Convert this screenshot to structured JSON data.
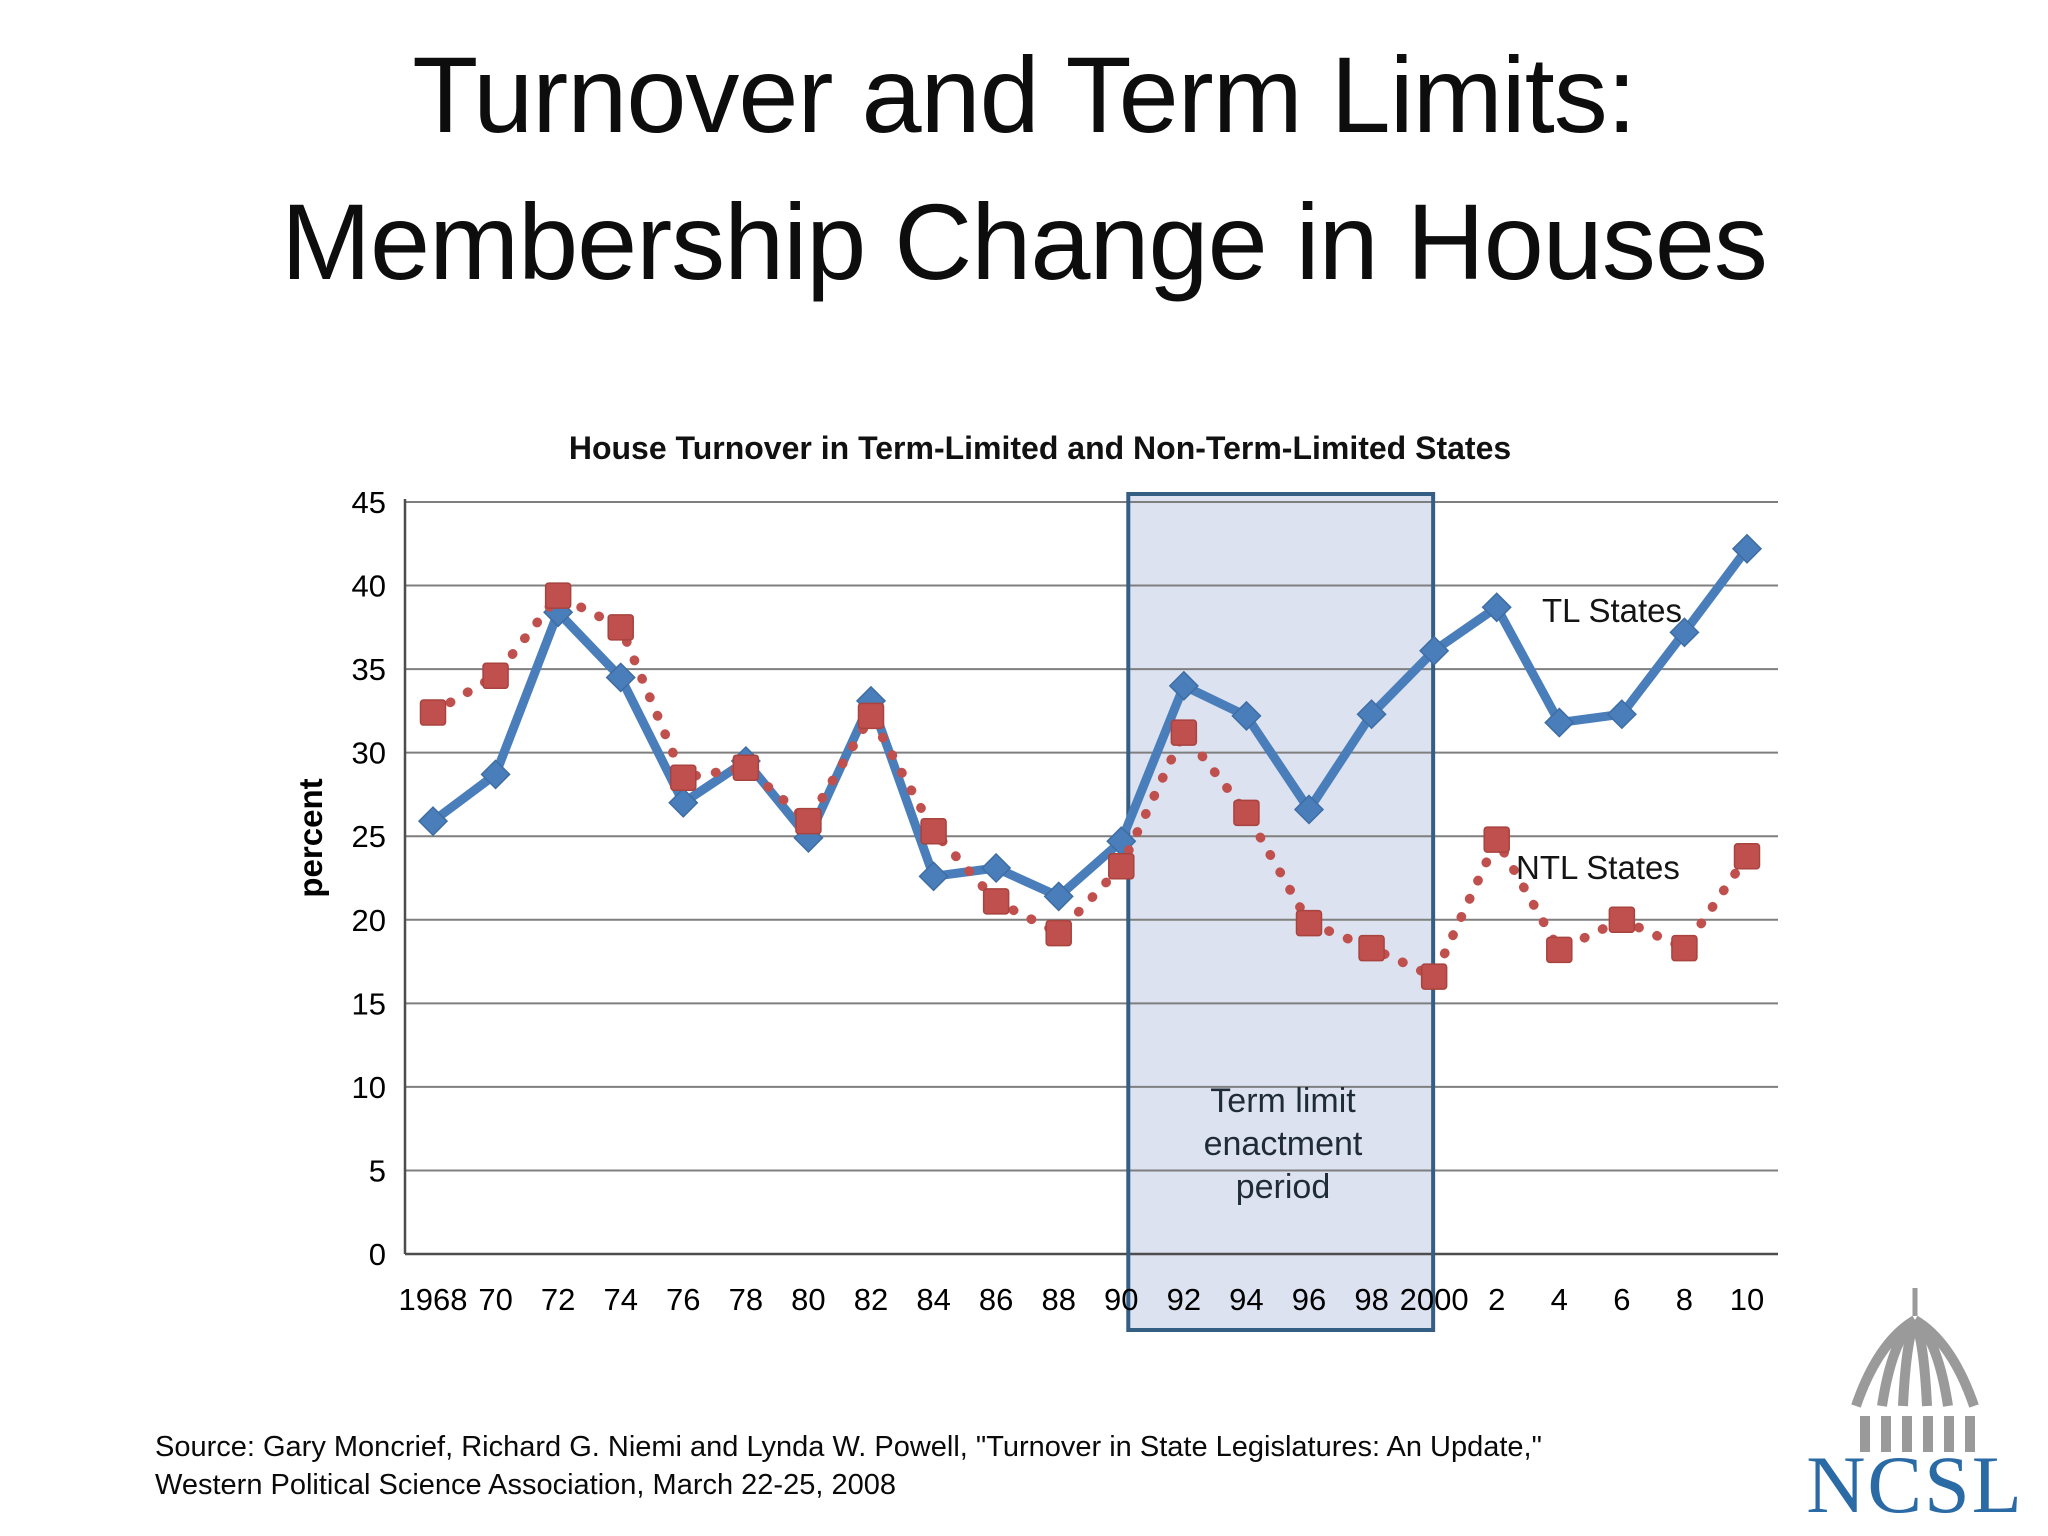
{
  "slide": {
    "title_line1": "Turnover and Term Limits:",
    "title_line2": "Membership Change in Houses",
    "source_line1": "Source: Gary Moncrief, Richard G. Niemi and Lynda W. Powell, \"Turnover in State Legislatures: An Update,\"",
    "source_line2": "Western Political Science Association, March 22-25, 2008",
    "logo_text": "NCSL"
  },
  "chart_data": {
    "type": "line",
    "title": "House Turnover in Term-Limited and Non-Term-Limited States",
    "xlabel": "",
    "ylabel": "percent",
    "ylim": [
      0,
      45
    ],
    "ytick_step": 5,
    "grid": true,
    "legend_position": "inline-annotations",
    "x_tick_labels": [
      "1968",
      "70",
      "72",
      "74",
      "76",
      "78",
      "80",
      "82",
      "84",
      "86",
      "88",
      "90",
      "92",
      "94",
      "96",
      "98",
      "2000",
      "2",
      "4",
      "6",
      "8",
      "10"
    ],
    "y_tick_labels": [
      "45",
      "40",
      "35",
      "30",
      "25",
      "20",
      "15",
      "10",
      "5",
      "0"
    ],
    "series": [
      {
        "name": "TL States",
        "color": "#4A7EBB",
        "marker": "diamond",
        "line_style": "solid",
        "values": [
          25.9,
          28.7,
          38.4,
          34.5,
          27.0,
          29.5,
          24.9,
          33.1,
          22.6,
          23.1,
          21.4,
          24.7,
          34.0,
          32.2,
          26.6,
          32.3,
          36.1,
          38.7,
          31.8,
          32.3,
          37.2,
          42.2
        ]
      },
      {
        "name": "NTL States",
        "color": "#C0504D",
        "marker": "square",
        "line_style": "dotted",
        "values": [
          32.4,
          34.6,
          39.4,
          37.5,
          28.5,
          29.1,
          25.9,
          32.2,
          25.3,
          21.1,
          19.2,
          23.2,
          31.2,
          26.4,
          19.8,
          18.3,
          16.6,
          24.8,
          18.2,
          20.0,
          18.3,
          23.8
        ]
      }
    ],
    "highlight_region": {
      "label": "Term limit enactment period",
      "x_start_label": "90",
      "x_end_label": "2000",
      "fill": "#D9E0EE",
      "border": "#355E83"
    },
    "colors": {
      "grid": "#7F7F7F",
      "axis": "#4D4D4D",
      "tick_text": "#000000"
    }
  }
}
